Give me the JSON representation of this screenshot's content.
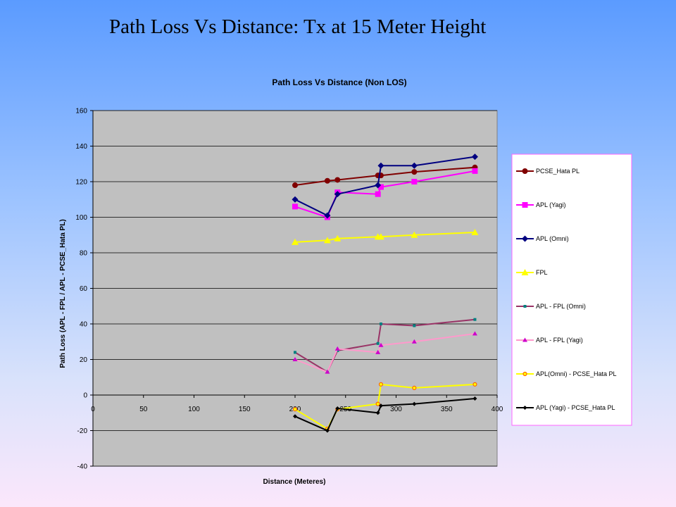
{
  "slide": {
    "title": "Path Loss Vs Distance: Tx at 15 Meter Height"
  },
  "chart_data": {
    "type": "line",
    "title": "Path Loss Vs Distance (Non LOS)",
    "xlabel": "Distance (Meteres)",
    "ylabel": "Path Loss (APL - FPL / APL - PCSE_Hata PL)",
    "xlim": [
      0,
      400
    ],
    "ylim": [
      -40,
      160
    ],
    "xticks": [
      0,
      50,
      100,
      150,
      200,
      250,
      300,
      350,
      400
    ],
    "yticks": [
      -40,
      -20,
      0,
      20,
      40,
      60,
      80,
      100,
      120,
      140,
      160
    ],
    "grid": "horizontal",
    "legend_position": "right",
    "plot_background": "#c0c0c0",
    "series": [
      {
        "name": "PCSE_Hata PL",
        "color": "#800000",
        "marker": "circle",
        "x": [
          200,
          232,
          242,
          282,
          285,
          318,
          378
        ],
        "y": [
          118,
          120.5,
          121,
          123.5,
          123.5,
          125.5,
          128
        ]
      },
      {
        "name": "APL (Yagi)",
        "color": "#ff00ff",
        "marker": "square",
        "x": [
          200,
          232,
          242,
          282,
          285,
          318,
          378
        ],
        "y": [
          106,
          100,
          114,
          113,
          117,
          120,
          126
        ]
      },
      {
        "name": "APL (Omni)",
        "color": "#000080",
        "marker": "diamond",
        "x": [
          200,
          232,
          242,
          282,
          285,
          318,
          378
        ],
        "y": [
          110,
          101,
          113,
          118,
          129,
          129,
          134
        ]
      },
      {
        "name": "FPL",
        "color": "#ffff00",
        "marker": "triangle",
        "x": [
          200,
          232,
          242,
          282,
          285,
          318,
          378
        ],
        "y": [
          86,
          87,
          88,
          89,
          89,
          90,
          91.5
        ]
      },
      {
        "name": "APL - FPL (Omni)",
        "color": "#993366",
        "marker": "small-square",
        "markerColor": "#008080",
        "x": [
          200,
          232,
          242,
          282,
          285,
          318,
          378
        ],
        "y": [
          24,
          13,
          25,
          29,
          40,
          39,
          42.5
        ]
      },
      {
        "name": "APL - FPL (Yagi)",
        "color": "#ff99cc",
        "marker": "small-triangle",
        "markerColor": "#cc00cc",
        "x": [
          200,
          232,
          242,
          282,
          285,
          318,
          378
        ],
        "y": [
          20,
          13,
          26,
          24,
          28,
          30,
          34.5
        ]
      },
      {
        "name": "APL(Omni) - PCSE_Hata PL",
        "color": "#ffff00",
        "marker": "open-circle",
        "markerColor": "#ff6600",
        "x": [
          200,
          232,
          242,
          282,
          285,
          318,
          378
        ],
        "y": [
          -8,
          -19,
          -8,
          -5,
          6,
          4,
          6
        ]
      },
      {
        "name": "APL (Yagi) - PCSE_Hata PL",
        "color": "#000000",
        "marker": "small-diamond",
        "x": [
          200,
          232,
          242,
          282,
          285,
          318,
          378
        ],
        "y": [
          -12,
          -20,
          -7.5,
          -10,
          -6,
          -5,
          -2
        ]
      }
    ]
  }
}
